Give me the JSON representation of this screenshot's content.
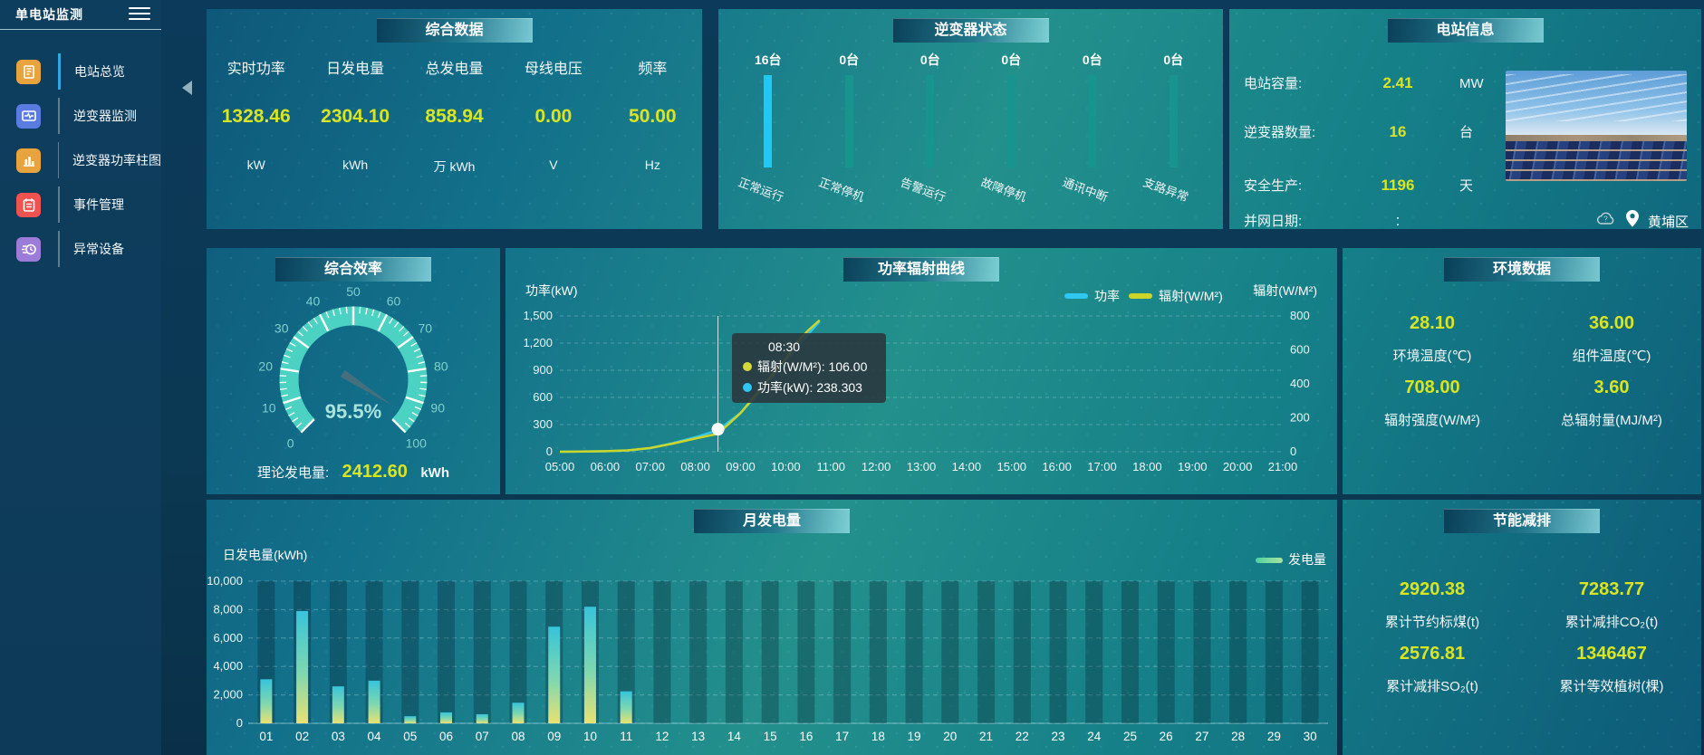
{
  "app": {
    "title": "单电站监测"
  },
  "colors": {
    "value_yellow": "#d9e422",
    "power_line": "#2fc6f2",
    "radiation_line": "#cdd628",
    "inverter_active_bar": "#1fc8f6",
    "inverter_idle_bar": "#17948e",
    "gauge_ring": "#4bd2c2",
    "bar_gradient_top": "#37c4da",
    "bar_gradient_bottom": "#e9e272",
    "legend_generation": "#6fd79b"
  },
  "sidebar": {
    "items": [
      {
        "label": "电站总览",
        "icon": "station-overview-icon",
        "color": "#e8a33d",
        "active": true
      },
      {
        "label": "逆变器监测",
        "icon": "inverter-monitor-icon",
        "color": "#5a7be0",
        "active": false
      },
      {
        "label": "逆变器功率柱图",
        "icon": "inverter-power-bars-icon",
        "color": "#e8a33d",
        "active": false
      },
      {
        "label": "事件管理",
        "icon": "event-management-icon",
        "color": "#ef5350",
        "active": false
      },
      {
        "label": "异常设备",
        "icon": "abnormal-device-icon",
        "color": "#9d7bd8",
        "active": false
      }
    ]
  },
  "panels": {
    "summary": {
      "title": "综合数据",
      "metrics": [
        {
          "label": "实时功率",
          "value": "1328.46",
          "unit": "kW"
        },
        {
          "label": "日发电量",
          "value": "2304.10",
          "unit": "kWh"
        },
        {
          "label": "总发电量",
          "value": "858.94",
          "unit": "万 kWh"
        },
        {
          "label": "母线电压",
          "value": "0.00",
          "unit": "V"
        },
        {
          "label": "频率",
          "value": "50.00",
          "ununit": "",
          "unit": "Hz"
        }
      ]
    },
    "inverter_status": {
      "title": "逆变器状态",
      "items": [
        {
          "count": "16台",
          "label": "正常运行",
          "active": true
        },
        {
          "count": "0台",
          "label": "正常停机",
          "active": false
        },
        {
          "count": "0台",
          "label": "告警运行",
          "active": false
        },
        {
          "count": "0台",
          "label": "故障停机",
          "active": false
        },
        {
          "count": "0台",
          "label": "通讯中断",
          "active": false
        },
        {
          "count": "0台",
          "label": "支路异常",
          "active": false
        }
      ]
    },
    "station_info": {
      "title": "电站信息",
      "rows": [
        {
          "label": "电站容量:",
          "value": "2.41",
          "unit": "MW",
          "plain": false
        },
        {
          "label": "逆变器数量:",
          "value": "16",
          "unit": "台",
          "plain": false
        },
        {
          "label": "安全生产:",
          "value": "1196",
          "unit": "天",
          "plain": false
        },
        {
          "label": "并网日期:",
          "value": ":",
          "unit": "",
          "plain": true
        }
      ],
      "location": "黄埔区"
    },
    "efficiency": {
      "title": "综合效率",
      "theory_label": "理论发电量:",
      "theory_value": "2412.60",
      "theory_unit": "kWh"
    },
    "power_curve": {
      "title": "功率辐射曲线",
      "tooltip": {
        "time": "08:30",
        "rows": [
          {
            "name": "辐射(W/M²)",
            "value": "106.00",
            "color": "#d6d93a"
          },
          {
            "name": "功率(kW)",
            "value": "238.303",
            "color": "#2fc6f2"
          }
        ]
      }
    },
    "environment": {
      "title": "环境数据",
      "metrics": [
        {
          "value": "28.10",
          "label": "环境温度(℃)"
        },
        {
          "value": "36.00",
          "label": "组件温度(℃)"
        },
        {
          "value": "708.00",
          "label": "辐射强度(W/M²)"
        },
        {
          "value": "3.60",
          "label": "总辐射量(MJ/M²)"
        }
      ]
    },
    "monthly": {
      "title": "月发电量"
    },
    "saving": {
      "title": "节能减排",
      "metrics": [
        {
          "value": "2920.38",
          "label": "累计节约标煤(t)"
        },
        {
          "value": "7283.77",
          "label": "累计减排CO₂(t)"
        },
        {
          "value": "2576.81",
          "label": "累计减排SO₂(t)"
        },
        {
          "value": "1346467",
          "label": "累计等效植树(棵)"
        }
      ]
    }
  },
  "chart_data": [
    {
      "type": "gauge",
      "title": "综合效率",
      "min": 0,
      "max": 100,
      "value": 95.5,
      "value_label": "95.5%",
      "tick_labels": [
        "0",
        "10",
        "20",
        "30",
        "40",
        "50",
        "60",
        "70",
        "80",
        "90",
        "100"
      ]
    },
    {
      "type": "line",
      "title": "功率辐射曲线",
      "x_ticks": [
        "05:00",
        "06:00",
        "07:00",
        "08:00",
        "09:00",
        "10:00",
        "11:00",
        "12:00",
        "13:00",
        "14:00",
        "15:00",
        "16:00",
        "17:00",
        "18:00",
        "19:00",
        "20:00",
        "21:00"
      ],
      "x_range_hours": [
        5,
        21
      ],
      "y_left": {
        "label": "功率(kW)",
        "min": 0,
        "max": 1500,
        "ticks": [
          "0",
          "300",
          "600",
          "900",
          "1,200",
          "1,500"
        ]
      },
      "y_right": {
        "label": "辐射(W/M²)",
        "min": 0,
        "max": 800,
        "ticks": [
          "0",
          "200",
          "400",
          "600",
          "800"
        ]
      },
      "legend": [
        {
          "name": "功率",
          "color": "#2fc6f2"
        },
        {
          "name": "辐射(W/M²)",
          "color": "#cdd628"
        }
      ],
      "pointer_hour": 8.5,
      "series": [
        {
          "name": "功率",
          "axis": "left",
          "color": "#2fc6f2",
          "points": [
            [
              5,
              0
            ],
            [
              5.5,
              2
            ],
            [
              6,
              5
            ],
            [
              6.5,
              14
            ],
            [
              7,
              40
            ],
            [
              7.5,
              95
            ],
            [
              8,
              160
            ],
            [
              8.5,
              238.303
            ],
            [
              9,
              430
            ],
            [
              9.5,
              700
            ],
            [
              10,
              1010
            ],
            [
              10.25,
              1160
            ],
            [
              10.5,
              1300
            ],
            [
              10.75,
              1440
            ]
          ]
        },
        {
          "name": "辐射(W/M²)",
          "axis": "right",
          "color": "#cdd628",
          "points": [
            [
              5,
              0
            ],
            [
              5.5,
              1
            ],
            [
              6,
              3
            ],
            [
              6.5,
              8
            ],
            [
              7,
              22
            ],
            [
              7.5,
              48
            ],
            [
              8,
              78
            ],
            [
              8.5,
              106
            ],
            [
              9,
              228
            ],
            [
              9.5,
              388
            ],
            [
              10,
              548
            ],
            [
              10.25,
              645
            ],
            [
              10.5,
              715
            ],
            [
              10.75,
              775
            ]
          ]
        }
      ]
    },
    {
      "type": "bar",
      "title": "月发电量",
      "ylabel": "日发电量(kWh)",
      "legend": "发电量",
      "ylim": [
        0,
        10000
      ],
      "y_ticks": [
        "0",
        "2,000",
        "4,000",
        "6,000",
        "8,000",
        "10,000"
      ],
      "categories": [
        "01",
        "02",
        "03",
        "04",
        "05",
        "06",
        "07",
        "08",
        "09",
        "10",
        "11",
        "12",
        "13",
        "14",
        "15",
        "16",
        "17",
        "18",
        "19",
        "20",
        "21",
        "22",
        "23",
        "24",
        "25",
        "26",
        "27",
        "28",
        "29",
        "30"
      ],
      "values": [
        3100,
        7900,
        2600,
        3000,
        500,
        770,
        640,
        1450,
        6800,
        8200,
        2250,
        0,
        0,
        0,
        0,
        0,
        0,
        0,
        0,
        0,
        0,
        0,
        0,
        0,
        0,
        0,
        0,
        0,
        0,
        0
      ]
    }
  ]
}
